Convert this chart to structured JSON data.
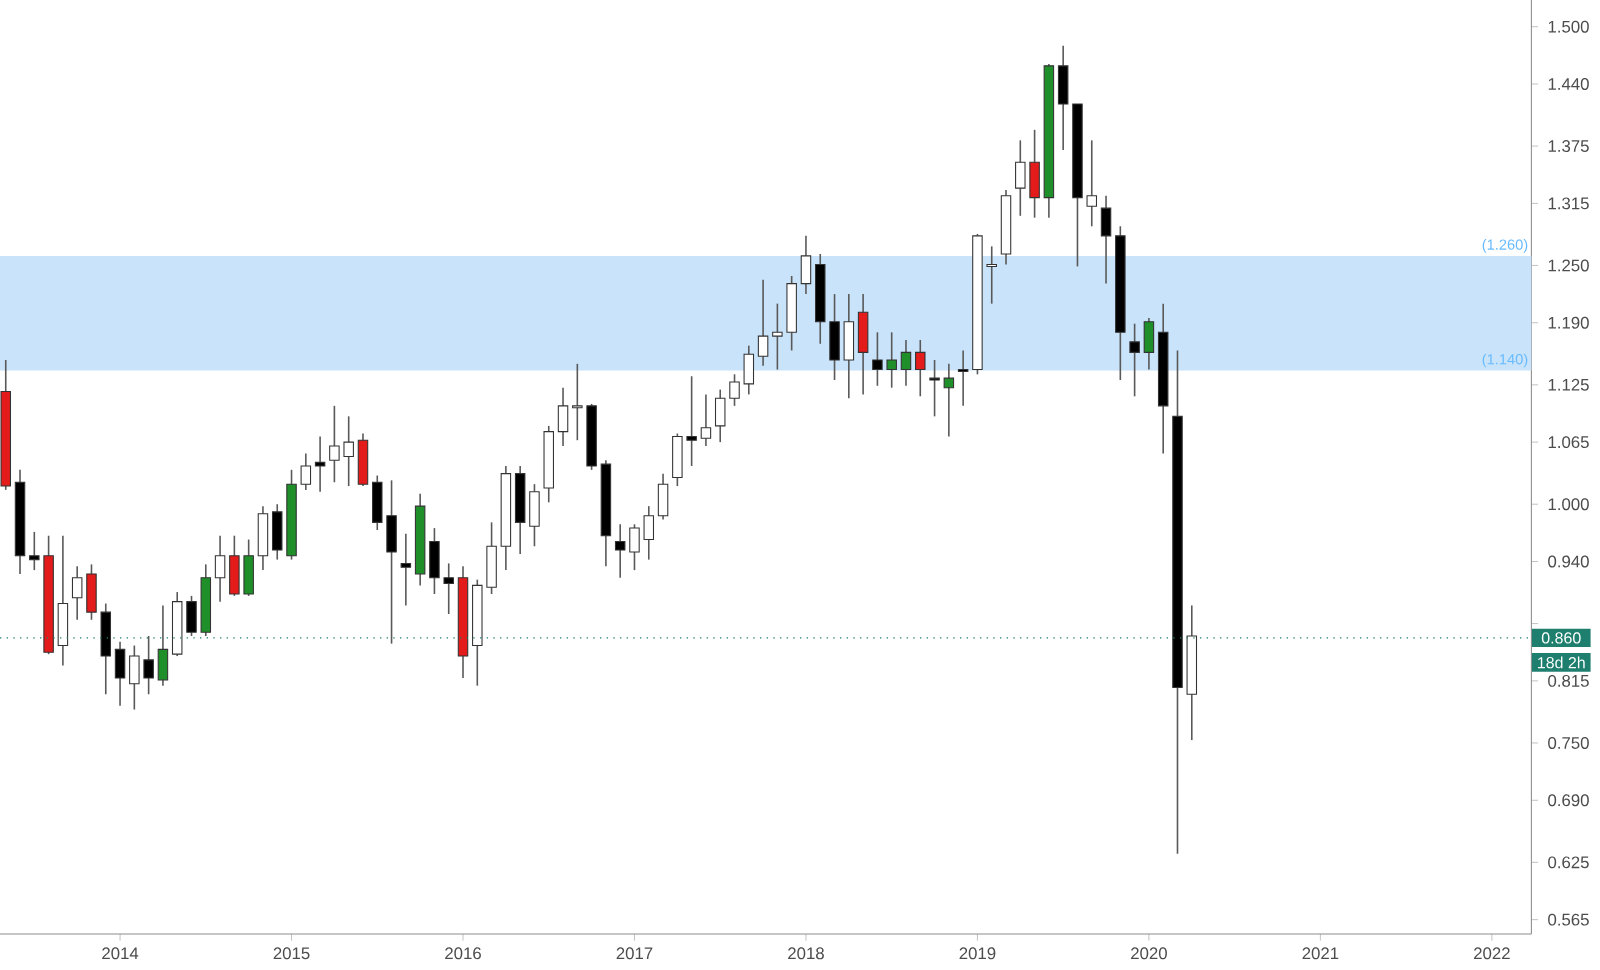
{
  "chart_data": {
    "type": "candlestick",
    "x": [
      "2013-05",
      "2013-06",
      "2013-07",
      "2013-08",
      "2013-09",
      "2013-10",
      "2013-11",
      "2013-12",
      "2014-01",
      "2014-02",
      "2014-03",
      "2014-04",
      "2014-05",
      "2014-06",
      "2014-07",
      "2014-08",
      "2014-09",
      "2014-10",
      "2014-11",
      "2014-12",
      "2015-01",
      "2015-02",
      "2015-03",
      "2015-04",
      "2015-05",
      "2015-06",
      "2015-07",
      "2015-08",
      "2015-09",
      "2015-10",
      "2015-11",
      "2015-12",
      "2016-01",
      "2016-02",
      "2016-03",
      "2016-04",
      "2016-05",
      "2016-06",
      "2016-07",
      "2016-08",
      "2016-09",
      "2016-10",
      "2016-11",
      "2016-12",
      "2017-01",
      "2017-02",
      "2017-03",
      "2017-04",
      "2017-05",
      "2017-06",
      "2017-07",
      "2017-08",
      "2017-09",
      "2017-10",
      "2017-11",
      "2017-12",
      "2018-01",
      "2018-02",
      "2018-03",
      "2018-04",
      "2018-05",
      "2018-06",
      "2018-07",
      "2018-08",
      "2018-09",
      "2018-10",
      "2018-11",
      "2018-12",
      "2019-01",
      "2019-02",
      "2019-03",
      "2019-04",
      "2019-05",
      "2019-06",
      "2019-07",
      "2019-08",
      "2019-09",
      "2019-10",
      "2019-11",
      "2019-12",
      "2020-01",
      "2020-02",
      "2020-03",
      "2020-04"
    ],
    "ohlc": [
      [
        1.118,
        1.151,
        1.015,
        1.019
      ],
      [
        1.023,
        1.036,
        0.927,
        0.946
      ],
      [
        0.946,
        0.971,
        0.931,
        0.942
      ],
      [
        0.946,
        0.967,
        0.843,
        0.845
      ],
      [
        0.852,
        0.967,
        0.831,
        0.896
      ],
      [
        0.902,
        0.935,
        0.879,
        0.923
      ],
      [
        0.927,
        0.937,
        0.879,
        0.887
      ],
      [
        0.887,
        0.896,
        0.801,
        0.841
      ],
      [
        0.848,
        0.856,
        0.789,
        0.818
      ],
      [
        0.812,
        0.852,
        0.785,
        0.841
      ],
      [
        0.837,
        0.862,
        0.801,
        0.818
      ],
      [
        0.816,
        0.894,
        0.81,
        0.848
      ],
      [
        0.843,
        0.908,
        0.841,
        0.898
      ],
      [
        0.898,
        0.904,
        0.862,
        0.866
      ],
      [
        0.866,
        0.937,
        0.862,
        0.923
      ],
      [
        0.923,
        0.967,
        0.898,
        0.946
      ],
      [
        0.946,
        0.967,
        0.904,
        0.906
      ],
      [
        0.906,
        0.963,
        0.904,
        0.946
      ],
      [
        0.946,
        0.998,
        0.931,
        0.99
      ],
      [
        0.992,
        1.0,
        0.942,
        0.952
      ],
      [
        0.946,
        1.036,
        0.942,
        1.021
      ],
      [
        1.021,
        1.053,
        1.015,
        1.04
      ],
      [
        1.044,
        1.071,
        1.013,
        1.04
      ],
      [
        1.046,
        1.103,
        1.023,
        1.061
      ],
      [
        1.05,
        1.092,
        1.019,
        1.065
      ],
      [
        1.067,
        1.074,
        1.019,
        1.021
      ],
      [
        1.023,
        1.03,
        0.973,
        0.981
      ],
      [
        0.988,
        1.025,
        0.854,
        0.95
      ],
      [
        0.938,
        0.969,
        0.894,
        0.934
      ],
      [
        0.927,
        1.011,
        0.915,
        0.998
      ],
      [
        0.961,
        0.975,
        0.906,
        0.923
      ],
      [
        0.923,
        0.938,
        0.885,
        0.917
      ],
      [
        0.923,
        0.935,
        0.818,
        0.841
      ],
      [
        0.852,
        0.921,
        0.81,
        0.915
      ],
      [
        0.913,
        0.981,
        0.906,
        0.956
      ],
      [
        0.956,
        1.04,
        0.931,
        1.032
      ],
      [
        1.032,
        1.04,
        0.948,
        0.981
      ],
      [
        0.977,
        1.021,
        0.956,
        1.013
      ],
      [
        1.017,
        1.082,
        1.002,
        1.076
      ],
      [
        1.076,
        1.122,
        1.061,
        1.103
      ],
      [
        1.101,
        1.147,
        1.067,
        1.103
      ],
      [
        1.103,
        1.105,
        1.036,
        1.04
      ],
      [
        1.042,
        1.046,
        0.935,
        0.967
      ],
      [
        0.961,
        0.979,
        0.923,
        0.952
      ],
      [
        0.95,
        0.979,
        0.931,
        0.975
      ],
      [
        0.963,
        0.998,
        0.942,
        0.988
      ],
      [
        0.988,
        1.032,
        0.984,
        1.021
      ],
      [
        1.028,
        1.074,
        1.019,
        1.071
      ],
      [
        1.071,
        1.134,
        1.04,
        1.067
      ],
      [
        1.069,
        1.115,
        1.061,
        1.08
      ],
      [
        1.082,
        1.12,
        1.065,
        1.111
      ],
      [
        1.111,
        1.136,
        1.103,
        1.128
      ],
      [
        1.126,
        1.166,
        1.115,
        1.157
      ],
      [
        1.155,
        1.235,
        1.145,
        1.176
      ],
      [
        1.176,
        1.21,
        1.141,
        1.18
      ],
      [
        1.18,
        1.239,
        1.161,
        1.231
      ],
      [
        1.231,
        1.281,
        1.22,
        1.26
      ],
      [
        1.251,
        1.262,
        1.168,
        1.191
      ],
      [
        1.191,
        1.22,
        1.13,
        1.151
      ],
      [
        1.151,
        1.22,
        1.111,
        1.191
      ],
      [
        1.201,
        1.22,
        1.115,
        1.159
      ],
      [
        1.151,
        1.18,
        1.124,
        1.141
      ],
      [
        1.141,
        1.18,
        1.122,
        1.151
      ],
      [
        1.141,
        1.172,
        1.124,
        1.159
      ],
      [
        1.159,
        1.172,
        1.113,
        1.141
      ],
      [
        1.132,
        1.151,
        1.092,
        1.13
      ],
      [
        1.122,
        1.147,
        1.071,
        1.132
      ],
      [
        1.141,
        1.161,
        1.103,
        1.139
      ],
      [
        1.141,
        1.283,
        1.136,
        1.281
      ],
      [
        1.249,
        1.27,
        1.21,
        1.251
      ],
      [
        1.262,
        1.329,
        1.251,
        1.323
      ],
      [
        1.331,
        1.381,
        1.302,
        1.358
      ],
      [
        1.358,
        1.392,
        1.3,
        1.321
      ],
      [
        1.321,
        1.461,
        1.3,
        1.459
      ],
      [
        1.459,
        1.48,
        1.371,
        1.419
      ],
      [
        1.419,
        1.419,
        1.249,
        1.321
      ],
      [
        1.312,
        1.381,
        1.291,
        1.323
      ],
      [
        1.31,
        1.323,
        1.231,
        1.281
      ],
      [
        1.281,
        1.291,
        1.13,
        1.18
      ],
      [
        1.17,
        1.189,
        1.113,
        1.159
      ],
      [
        1.159,
        1.195,
        1.141,
        1.191
      ],
      [
        1.18,
        1.21,
        1.053,
        1.103
      ],
      [
        1.092,
        1.161,
        0.634,
        0.808
      ],
      [
        0.801,
        0.894,
        0.753,
        0.862
      ]
    ],
    "colors": [
      "#e31b1b",
      "#000000",
      "#000000",
      "#e31b1b",
      "#ffffff",
      "#ffffff",
      "#e31b1b",
      "#000000",
      "#000000",
      "#ffffff",
      "#000000",
      "#1f8f2a",
      "#ffffff",
      "#000000",
      "#1f8f2a",
      "#ffffff",
      "#e31b1b",
      "#1f8f2a",
      "#ffffff",
      "#000000",
      "#1f8f2a",
      "#ffffff",
      "#000000",
      "#ffffff",
      "#ffffff",
      "#e31b1b",
      "#000000",
      "#000000",
      "#000000",
      "#1f8f2a",
      "#000000",
      "#000000",
      "#e31b1b",
      "#ffffff",
      "#ffffff",
      "#ffffff",
      "#000000",
      "#ffffff",
      "#ffffff",
      "#ffffff",
      "#ffffff",
      "#000000",
      "#000000",
      "#000000",
      "#ffffff",
      "#ffffff",
      "#ffffff",
      "#ffffff",
      "#000000",
      "#ffffff",
      "#ffffff",
      "#ffffff",
      "#ffffff",
      "#ffffff",
      "#ffffff",
      "#ffffff",
      "#ffffff",
      "#000000",
      "#000000",
      "#ffffff",
      "#e31b1b",
      "#000000",
      "#1f8f2a",
      "#1f8f2a",
      "#e31b1b",
      "#000000",
      "#1f8f2a",
      "#000000",
      "#ffffff",
      "#ffffff",
      "#ffffff",
      "#ffffff",
      "#e31b1b",
      "#1f8f2a",
      "#000000",
      "#000000",
      "#ffffff",
      "#000000",
      "#000000",
      "#000000",
      "#1f8f2a",
      "#000000",
      "#000000",
      "#ffffff"
    ],
    "xlim": [
      "2013-04-19",
      "2022-03-24"
    ],
    "xticks": [
      "2014",
      "2015",
      "2016",
      "2017",
      "2018",
      "2019",
      "2020",
      "2021",
      "2022"
    ],
    "ylim": [
      0.55,
      1.528
    ],
    "yticks": [
      {
        "value": 1.5,
        "label": "1.500"
      },
      {
        "value": 1.44,
        "label": "1.440"
      },
      {
        "value": 1.375,
        "label": "1.375"
      },
      {
        "value": 1.315,
        "label": "1.315"
      },
      {
        "value": 1.25,
        "label": "1.250"
      },
      {
        "value": 1.19,
        "label": "1.190"
      },
      {
        "value": 1.125,
        "label": "1.125"
      },
      {
        "value": 1.065,
        "label": "1.065"
      },
      {
        "value": 1.0,
        "label": "1.000"
      },
      {
        "value": 0.94,
        "label": "0.940"
      },
      {
        "value": 0.875,
        "label": null
      },
      {
        "value": 0.815,
        "label": "0.815"
      },
      {
        "value": 0.75,
        "label": "0.750"
      },
      {
        "value": 0.69,
        "label": "0.690"
      },
      {
        "value": 0.625,
        "label": "0.625"
      },
      {
        "value": 0.565,
        "label": "0.565"
      }
    ],
    "bands": [
      {
        "axis": "y",
        "from": 1.14,
        "to": 1.26,
        "color": "#c8e3fa"
      }
    ],
    "ref_lines": [
      {
        "axis": "y",
        "value": 0.86,
        "label": "0.860",
        "color": "#1e7f6e",
        "line_style": "dotted"
      }
    ],
    "annotations": [
      {
        "text": "(1.260)",
        "y": 1.26
      },
      {
        "text": "(1.140)",
        "y": 1.14
      },
      "18d 2h"
    ]
  }
}
